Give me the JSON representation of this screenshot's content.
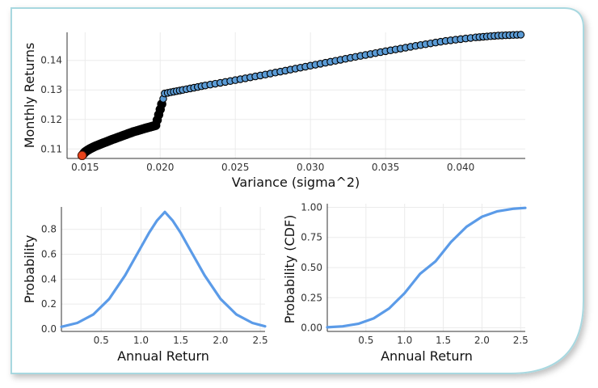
{
  "panels": {
    "frontier": {
      "xlabel": "Variance (sigma^2)",
      "ylabel": "Monthly Returns",
      "xticks": [
        "0.015",
        "0.020",
        "0.025",
        "0.030",
        "0.035",
        "0.040"
      ],
      "yticks": [
        "0.11",
        "0.12",
        "0.13",
        "0.14"
      ]
    },
    "pdf": {
      "xlabel": "Annual Return",
      "ylabel": "Probability",
      "xticks": [
        "0.5",
        "1.0",
        "1.5",
        "2.0",
        "2.5"
      ],
      "yticks": [
        "0.0",
        "0.2",
        "0.4",
        "0.6",
        "0.8"
      ]
    },
    "cdf": {
      "xlabel": "Annual Return",
      "ylabel": "Probability (CDF)",
      "xticks": [
        "0.5",
        "1.0",
        "1.5",
        "2.0",
        "2.5"
      ],
      "yticks": [
        "0.00",
        "0.25",
        "0.50",
        "0.75",
        "1.00"
      ]
    }
  },
  "colors": {
    "frontier_line": "#000000",
    "frontier_marker": "#5b9bd5",
    "min_variance_marker": "#e8421a",
    "curve": "#5b9be8",
    "grid": "#ebebeb",
    "frame_border": "#a8d8e0"
  },
  "chart_data": [
    {
      "type": "scatter",
      "xlabel": "Variance (sigma^2)",
      "ylabel": "Monthly Returns",
      "xlim": [
        0.0138,
        0.0443
      ],
      "ylim": [
        0.1068,
        0.1495
      ],
      "grid": true,
      "series": [
        {
          "points": [
            [
              0.0148,
              0.1078
            ],
            [
              0.015,
              0.109
            ],
            [
              0.0153,
              0.11
            ],
            [
              0.0157,
              0.111
            ],
            [
              0.0162,
              0.112
            ],
            [
              0.0168,
              0.1132
            ],
            [
              0.0175,
              0.1145
            ],
            [
              0.0182,
              0.1158
            ],
            [
              0.019,
              0.117
            ],
            [
              0.0197,
              0.118
            ],
            [
              0.0203,
              0.1288
            ],
            [
              0.0215,
              0.13
            ],
            [
              0.023,
              0.1315
            ],
            [
              0.025,
              0.1333
            ],
            [
              0.027,
              0.1352
            ],
            [
              0.029,
              0.1372
            ],
            [
              0.031,
              0.1392
            ],
            [
              0.033,
              0.1412
            ],
            [
              0.035,
              0.1431
            ],
            [
              0.037,
              0.1449
            ],
            [
              0.039,
              0.1466
            ],
            [
              0.041,
              0.1478
            ],
            [
              0.0425,
              0.1484
            ],
            [
              0.044,
              0.1487
            ]
          ]
        }
      ],
      "highlight_point": [
        0.0148,
        0.1078
      ]
    },
    {
      "type": "line",
      "xlabel": "Annual Return",
      "ylabel": "Probability",
      "xlim": [
        0.0,
        2.56
      ],
      "ylim": [
        -0.02,
        0.98
      ],
      "grid": true,
      "series": [
        {
          "x": [
            0.0,
            0.2,
            0.4,
            0.6,
            0.8,
            1.0,
            1.1,
            1.2,
            1.3,
            1.4,
            1.5,
            1.6,
            1.8,
            2.0,
            2.2,
            2.4,
            2.56
          ],
          "y": [
            0.017,
            0.048,
            0.116,
            0.241,
            0.43,
            0.656,
            0.77,
            0.869,
            0.94,
            0.869,
            0.77,
            0.656,
            0.43,
            0.241,
            0.116,
            0.048,
            0.021
          ]
        }
      ]
    },
    {
      "type": "line",
      "xlabel": "Annual Return",
      "ylabel": "Probability (CDF)",
      "xlim": [
        0.0,
        2.56
      ],
      "ylim": [
        -0.03,
        1.03
      ],
      "grid": true,
      "series": [
        {
          "x": [
            0.0,
            0.2,
            0.4,
            0.6,
            0.8,
            1.0,
            1.2,
            1.3,
            1.4,
            1.6,
            1.8,
            2.0,
            2.2,
            2.4,
            2.56
          ],
          "y": [
            0.004,
            0.012,
            0.033,
            0.078,
            0.161,
            0.288,
            0.448,
            0.5,
            0.552,
            0.712,
            0.839,
            0.922,
            0.967,
            0.988,
            0.995
          ]
        }
      ]
    }
  ]
}
